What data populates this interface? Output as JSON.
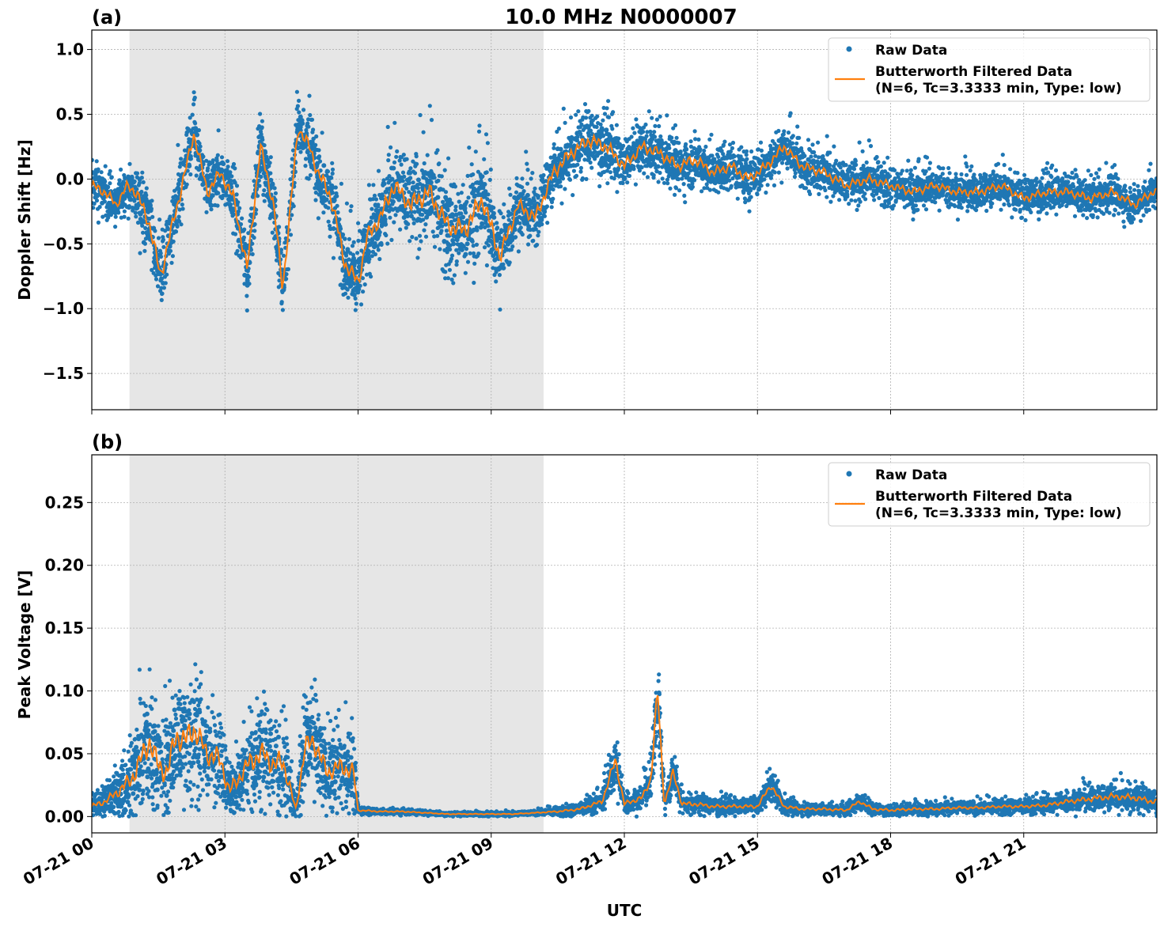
{
  "figure": {
    "title": "10.0 MHz N0000007",
    "xlabel": "UTC",
    "x_tick_labels": [
      "07-21 00",
      "07-21 03",
      "07-21 06",
      "07-21 09",
      "07-21 12",
      "07-21 15",
      "07-21 18",
      "07-21 21"
    ],
    "x_tick_hours": [
      0,
      3,
      6,
      9,
      12,
      15,
      18,
      21
    ],
    "shaded_interval_hours": [
      0.85,
      10.18
    ],
    "colors": {
      "raw": "#1f77b4",
      "filtered": "#ff7f0e",
      "shade": "#e6e6e6",
      "grid": "#b0b0b0"
    }
  },
  "chart_data": [
    {
      "type": "scatter",
      "panel_label": "(a)",
      "ylabel": "Doppler Shift [Hz]",
      "xlim": [
        0,
        24
      ],
      "ylim": [
        -1.78,
        1.15
      ],
      "y_ticks": [
        1.0,
        0.5,
        0.0,
        -0.5,
        -1.0,
        -1.5
      ],
      "y_tick_labels": [
        "1.0",
        "0.5",
        "0.0",
        "−0.5",
        "−1.0",
        "−1.5"
      ],
      "grid": true,
      "legend_position": "top-right",
      "legend": [
        "Raw Data",
        "Butterworth Filtered Data",
        "(N=6, Tc=3.3333 min, Type: low)"
      ],
      "series": [
        {
          "name": "Raw Data",
          "x": [
            0.0,
            0.3,
            0.55,
            0.8,
            1.0,
            1.3,
            1.55,
            1.75,
            2.0,
            2.3,
            2.6,
            2.9,
            3.2,
            3.5,
            3.8,
            4.1,
            4.3,
            4.65,
            4.9,
            5.1,
            5.4,
            5.7,
            6.0,
            6.2,
            6.5,
            6.8,
            7.2,
            7.6,
            8.0,
            8.4,
            8.8,
            9.2,
            9.6,
            10.0,
            10.4,
            10.8,
            11.2,
            11.6,
            12.0,
            12.4,
            12.8,
            13.2,
            13.6,
            14.0,
            14.4,
            14.8,
            15.2,
            15.6,
            16.0,
            16.5,
            17.0,
            17.5,
            18.0,
            18.5,
            19.0,
            19.5,
            20.0,
            20.5,
            21.0,
            21.5,
            22.0,
            22.5,
            23.0,
            23.5,
            23.9
          ],
          "values": [
            -0.05,
            -0.1,
            -0.2,
            -0.05,
            -0.1,
            -0.35,
            -0.75,
            -0.45,
            -0.1,
            0.35,
            -0.1,
            0.05,
            -0.15,
            -0.7,
            0.25,
            -0.2,
            -0.85,
            0.4,
            0.25,
            0.05,
            -0.15,
            -0.65,
            -0.8,
            -0.45,
            -0.3,
            -0.05,
            -0.2,
            -0.1,
            -0.35,
            -0.4,
            -0.15,
            -0.6,
            -0.2,
            -0.3,
            0.05,
            0.2,
            0.3,
            0.25,
            0.1,
            0.25,
            0.2,
            0.1,
            0.15,
            0.05,
            0.1,
            0.0,
            0.1,
            0.25,
            0.1,
            0.05,
            -0.05,
            0.0,
            -0.05,
            -0.1,
            -0.05,
            -0.1,
            -0.1,
            -0.05,
            -0.15,
            -0.1,
            -0.1,
            -0.15,
            -0.1,
            -0.2,
            -0.1
          ],
          "spread": [
            0.22,
            0.22,
            0.2,
            0.2,
            0.3,
            0.3,
            0.35,
            0.3,
            0.3,
            0.25,
            0.3,
            0.25,
            0.3,
            0.35,
            0.3,
            0.3,
            0.35,
            0.25,
            0.3,
            0.3,
            0.35,
            0.35,
            0.35,
            0.35,
            0.35,
            0.4,
            0.4,
            0.45,
            0.45,
            0.45,
            0.45,
            0.4,
            0.3,
            0.3,
            0.3,
            0.3,
            0.3,
            0.3,
            0.25,
            0.25,
            0.25,
            0.25,
            0.25,
            0.22,
            0.22,
            0.22,
            0.22,
            0.22,
            0.2,
            0.2,
            0.2,
            0.2,
            0.18,
            0.18,
            0.18,
            0.18,
            0.18,
            0.18,
            0.18,
            0.18,
            0.18,
            0.18,
            0.18,
            0.18,
            0.18
          ]
        },
        {
          "name": "Butterworth Filtered Data",
          "x": [
            0.0,
            0.3,
            0.55,
            0.8,
            1.0,
            1.3,
            1.55,
            1.75,
            2.0,
            2.3,
            2.6,
            2.9,
            3.2,
            3.5,
            3.8,
            4.1,
            4.3,
            4.65,
            4.9,
            5.1,
            5.4,
            5.7,
            6.0,
            6.2,
            6.5,
            6.8,
            7.2,
            7.6,
            8.0,
            8.4,
            8.8,
            9.2,
            9.6,
            10.0,
            10.4,
            10.8,
            11.2,
            11.6,
            12.0,
            12.4,
            12.8,
            13.2,
            13.6,
            14.0,
            14.4,
            14.8,
            15.2,
            15.6,
            16.0,
            16.5,
            17.0,
            17.5,
            18.0,
            18.5,
            19.0,
            19.5,
            20.0,
            20.5,
            21.0,
            21.5,
            22.0,
            22.5,
            23.0,
            23.5,
            23.9
          ],
          "values": [
            -0.05,
            -0.1,
            -0.2,
            -0.05,
            -0.1,
            -0.35,
            -0.75,
            -0.45,
            -0.1,
            0.35,
            -0.1,
            0.05,
            -0.15,
            -0.7,
            0.25,
            -0.2,
            -0.85,
            0.4,
            0.25,
            0.05,
            -0.15,
            -0.65,
            -0.8,
            -0.45,
            -0.3,
            -0.05,
            -0.2,
            -0.1,
            -0.35,
            -0.4,
            -0.15,
            -0.6,
            -0.2,
            -0.3,
            0.05,
            0.2,
            0.3,
            0.25,
            0.1,
            0.25,
            0.2,
            0.1,
            0.15,
            0.05,
            0.1,
            0.0,
            0.1,
            0.25,
            0.1,
            0.05,
            -0.05,
            0.0,
            -0.05,
            -0.1,
            -0.05,
            -0.1,
            -0.1,
            -0.05,
            -0.15,
            -0.1,
            -0.1,
            -0.15,
            -0.1,
            -0.2,
            -0.1
          ]
        }
      ]
    },
    {
      "type": "scatter",
      "panel_label": "(b)",
      "ylabel": "Peak Voltage [V]",
      "xlim": [
        0,
        24
      ],
      "ylim": [
        -0.013,
        0.288
      ],
      "y_ticks": [
        0.25,
        0.2,
        0.15,
        0.1,
        0.05,
        0.0
      ],
      "y_tick_labels": [
        "0.25",
        "0.20",
        "0.15",
        "0.10",
        "0.05",
        "0.00"
      ],
      "grid": true,
      "legend_position": "top-right",
      "legend": [
        "Raw Data",
        "Butterworth Filtered Data",
        "(N=6, Tc=3.3333 min, Type: low)"
      ],
      "series": [
        {
          "name": "Raw Data",
          "x": [
            0.0,
            0.3,
            0.6,
            0.9,
            1.1,
            1.3,
            1.5,
            1.7,
            1.9,
            2.1,
            2.3,
            2.6,
            2.9,
            3.1,
            3.4,
            3.6,
            3.9,
            4.1,
            4.3,
            4.6,
            4.8,
            5.0,
            5.3,
            5.6,
            5.9,
            6.0,
            6.5,
            7.0,
            7.5,
            8.0,
            8.5,
            9.0,
            9.5,
            10.0,
            10.5,
            11.0,
            11.5,
            11.8,
            12.0,
            12.4,
            12.6,
            12.75,
            12.9,
            13.1,
            13.3,
            13.6,
            14.0,
            14.5,
            15.0,
            15.3,
            15.6,
            16.0,
            16.5,
            17.0,
            17.3,
            17.6,
            18.0,
            18.5,
            19.0,
            19.5,
            20.0,
            20.5,
            21.0,
            21.5,
            22.0,
            22.5,
            23.0,
            23.5,
            23.9
          ],
          "values": [
            0.008,
            0.012,
            0.02,
            0.03,
            0.045,
            0.06,
            0.04,
            0.035,
            0.065,
            0.06,
            0.07,
            0.05,
            0.045,
            0.02,
            0.035,
            0.045,
            0.05,
            0.04,
            0.045,
            0.005,
            0.055,
            0.06,
            0.035,
            0.04,
            0.035,
            0.005,
            0.004,
            0.004,
            0.003,
            0.002,
            0.002,
            0.002,
            0.002,
            0.003,
            0.004,
            0.006,
            0.012,
            0.045,
            0.01,
            0.015,
            0.03,
            0.1,
            0.01,
            0.035,
            0.01,
            0.01,
            0.008,
            0.008,
            0.008,
            0.025,
            0.008,
            0.006,
            0.006,
            0.005,
            0.012,
            0.006,
            0.005,
            0.006,
            0.006,
            0.007,
            0.007,
            0.008,
            0.008,
            0.009,
            0.012,
            0.014,
            0.016,
            0.015,
            0.012
          ],
          "spread": [
            0.012,
            0.014,
            0.025,
            0.04,
            0.05,
            0.06,
            0.05,
            0.05,
            0.06,
            0.06,
            0.06,
            0.05,
            0.05,
            0.03,
            0.04,
            0.05,
            0.05,
            0.05,
            0.05,
            0.01,
            0.05,
            0.05,
            0.04,
            0.04,
            0.04,
            0.004,
            0.003,
            0.003,
            0.002,
            0.002,
            0.002,
            0.002,
            0.002,
            0.002,
            0.004,
            0.006,
            0.01,
            0.03,
            0.01,
            0.012,
            0.02,
            0.05,
            0.012,
            0.02,
            0.01,
            0.01,
            0.008,
            0.008,
            0.008,
            0.015,
            0.008,
            0.006,
            0.006,
            0.006,
            0.008,
            0.006,
            0.006,
            0.006,
            0.006,
            0.006,
            0.006,
            0.007,
            0.007,
            0.008,
            0.01,
            0.012,
            0.014,
            0.014,
            0.012
          ]
        },
        {
          "name": "Butterworth Filtered Data",
          "x": [
            0.0,
            0.3,
            0.6,
            0.9,
            1.1,
            1.3,
            1.5,
            1.7,
            1.9,
            2.1,
            2.3,
            2.6,
            2.9,
            3.1,
            3.4,
            3.6,
            3.9,
            4.1,
            4.3,
            4.6,
            4.8,
            5.0,
            5.3,
            5.6,
            5.9,
            6.0,
            6.5,
            7.0,
            7.5,
            8.0,
            8.5,
            9.0,
            9.5,
            10.0,
            10.5,
            11.0,
            11.5,
            11.8,
            12.0,
            12.4,
            12.6,
            12.75,
            12.9,
            13.1,
            13.3,
            13.6,
            14.0,
            14.5,
            15.0,
            15.3,
            15.6,
            16.0,
            16.5,
            17.0,
            17.3,
            17.6,
            18.0,
            18.5,
            19.0,
            19.5,
            20.0,
            20.5,
            21.0,
            21.5,
            22.0,
            22.5,
            23.0,
            23.5,
            23.9
          ],
          "values": [
            0.008,
            0.012,
            0.02,
            0.03,
            0.045,
            0.06,
            0.04,
            0.035,
            0.065,
            0.06,
            0.07,
            0.05,
            0.045,
            0.02,
            0.035,
            0.045,
            0.05,
            0.04,
            0.045,
            0.005,
            0.055,
            0.06,
            0.035,
            0.04,
            0.035,
            0.005,
            0.004,
            0.004,
            0.003,
            0.002,
            0.002,
            0.002,
            0.002,
            0.003,
            0.004,
            0.006,
            0.012,
            0.045,
            0.01,
            0.015,
            0.03,
            0.1,
            0.01,
            0.035,
            0.01,
            0.01,
            0.008,
            0.008,
            0.008,
            0.025,
            0.008,
            0.006,
            0.006,
            0.005,
            0.012,
            0.006,
            0.005,
            0.006,
            0.006,
            0.007,
            0.007,
            0.008,
            0.008,
            0.009,
            0.012,
            0.014,
            0.016,
            0.015,
            0.012
          ]
        }
      ]
    }
  ]
}
